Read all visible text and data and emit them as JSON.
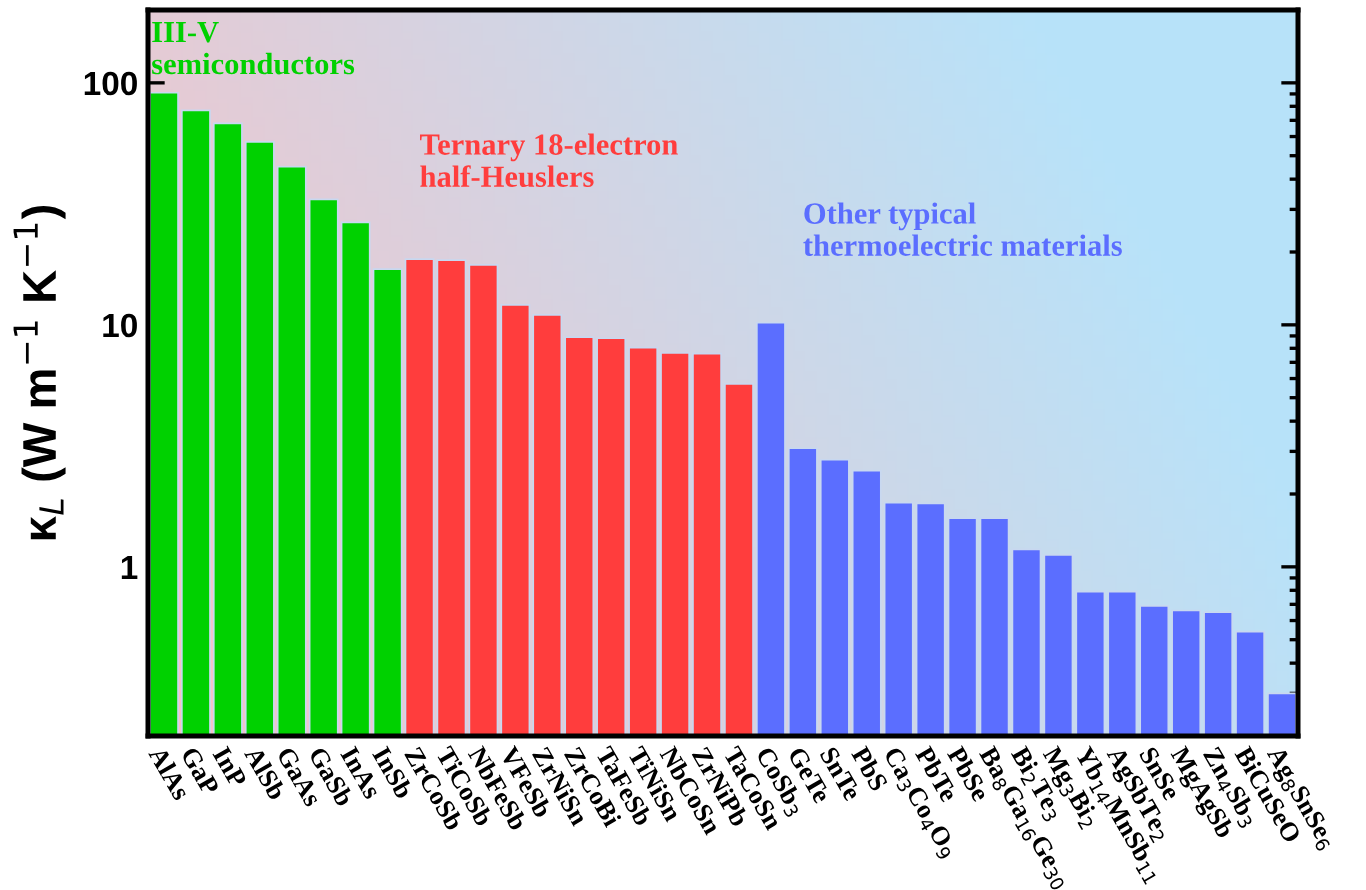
{
  "chart_data": {
    "type": "bar",
    "ylabel": "κ$_{L}$ (W m$^{−1}$ K$^{−1}$)",
    "categories": [
      "AlAs",
      "GaP",
      "InP",
      "AlSb",
      "GaAs",
      "GaSb",
      "InAs",
      "InSb",
      "ZrCoSb",
      "TiCoSb",
      "NbFeSb",
      "VFeSb",
      "ZrNiSn",
      "ZrCoBi",
      "TaFeSb",
      "TiNiSn",
      "NbCoSn",
      "ZrNiPb",
      "TaCoSn",
      "CoSb$_{3}$",
      "GeTe",
      "SnTe",
      "PbS",
      "Ca$_{3}$Co$_{4}$O$_{9}$",
      "PbTe",
      "PbSe",
      "Ba$_{8}$Ga$_{16}$Ge$_{30}$",
      "Bi$_{2}$Te$_{3}$",
      "Mg$_{3}$Bi$_{2}$",
      "Yb$_{14}$MnSb$_{11}$",
      "AgSbTe$_{2}$",
      "SnSe",
      "MgAgSb",
      "Zn$_{4}$Sb$_{3}$",
      "BiCuSeO",
      "Ag$_{8}$SnSe$_{6}$"
    ],
    "values": [
      91,
      77,
      68,
      57,
      45,
      33,
      26.5,
      17,
      18.7,
      18.5,
      17.7,
      12.1,
      11.0,
      8.9,
      8.8,
      8.05,
      7.65,
      7.6,
      5.7,
      10.2,
      3.09,
      2.77,
      2.5,
      1.84,
      1.83,
      1.59,
      1.59,
      1.18,
      1.12,
      0.79,
      0.79,
      0.69,
      0.66,
      0.65,
      0.54,
      0.3
    ],
    "colors": [
      "#00d100",
      "#00d100",
      "#00d100",
      "#00d100",
      "#00d100",
      "#00d100",
      "#00d100",
      "#00d100",
      "#ff3d3d",
      "#ff3d3d",
      "#ff3d3d",
      "#ff3d3d",
      "#ff3d3d",
      "#ff3d3d",
      "#ff3d3d",
      "#ff3d3d",
      "#ff3d3d",
      "#ff3d3d",
      "#ff3d3d",
      "#5b6eff",
      "#5b6eff",
      "#5b6eff",
      "#5b6eff",
      "#5b6eff",
      "#5b6eff",
      "#5b6eff",
      "#5b6eff",
      "#5b6eff",
      "#5b6eff",
      "#5b6eff",
      "#5b6eff",
      "#5b6eff",
      "#5b6eff",
      "#5b6eff",
      "#5b6eff",
      "#5b6eff"
    ],
    "annotations": [
      "III-V\nsemiconductors",
      "Ternary 18-electron\nhalf-Heuslers",
      "Other typical\nthermoelectric materials"
    ],
    "log": "y",
    "ylim": [
      0.2,
      200
    ],
    "yticks": [
      1,
      10,
      100
    ],
    "grid": false,
    "legend": false
  }
}
